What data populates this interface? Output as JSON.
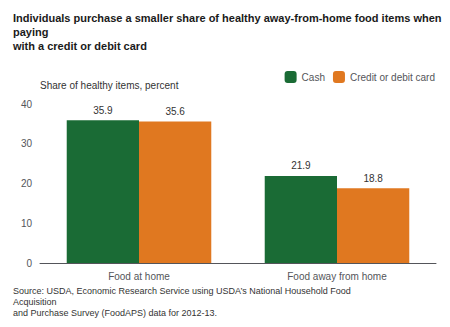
{
  "chart_data": {
    "type": "bar",
    "title": "Individuals purchase a smaller share of healthy away-from-home food items when paying\nwith a credit or debit card",
    "ylabel": "Share of healthy items, percent",
    "source": "Source: USDA, Economic Research Service using USDA’s National Household Food Acquisition\nand Purchase Survey (FoodAPS) data for 2012-13.",
    "categories": [
      "Food at home",
      "Food away from home"
    ],
    "series": [
      {
        "name": "Cash",
        "color": "#1a6b35",
        "values": [
          35.9,
          21.9
        ]
      },
      {
        "name": "Credit or debit card",
        "color": "#e07820",
        "values": [
          35.6,
          18.8
        ]
      }
    ],
    "ylim": [
      0,
      40
    ],
    "yticks": [
      0,
      10,
      20,
      30,
      40
    ],
    "data_labels": true,
    "legend": "upper right",
    "grid": false
  }
}
